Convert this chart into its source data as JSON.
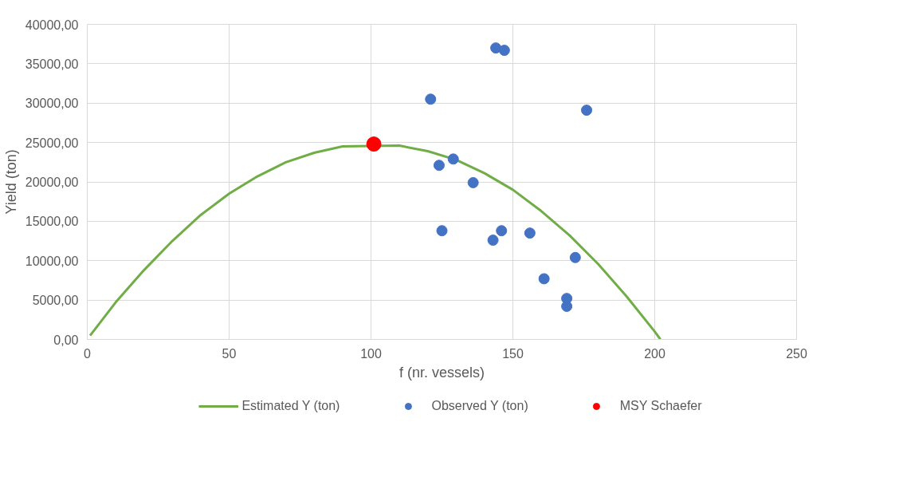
{
  "chart_data": {
    "type": "scatter",
    "xlabel": "f (nr. vessels)",
    "ylabel": "Yield (ton)",
    "xlim": [
      0,
      250
    ],
    "xticks": [
      0,
      50,
      100,
      150,
      200,
      250
    ],
    "ylim": [
      0,
      40000
    ],
    "yticks": [
      {
        "value": 0,
        "label": "0,00"
      },
      {
        "value": 5000,
        "label": "5000,00"
      },
      {
        "value": 10000,
        "label": "10000,00"
      },
      {
        "value": 15000,
        "label": "15000,00"
      },
      {
        "value": 20000,
        "label": "20000,00"
      },
      {
        "value": 25000,
        "label": "25000,00"
      },
      {
        "value": 30000,
        "label": "30000,00"
      },
      {
        "value": 35000,
        "label": "35000,00"
      },
      {
        "value": 40000,
        "label": "40000,00"
      }
    ],
    "grid": true,
    "legend": "bottom",
    "series": [
      {
        "name": "Estimated Y (ton)",
        "type": "line",
        "color": "#70ad47",
        "marker": "none",
        "line_style": "solid",
        "x": [
          1,
          10,
          20,
          30,
          40,
          50,
          60,
          70,
          80,
          90,
          110,
          120,
          130,
          140,
          150,
          160,
          170,
          180,
          190,
          200,
          202
        ],
        "values": [
          500,
          4700,
          8800,
          12500,
          15800,
          18500,
          20700,
          22500,
          23700,
          24500,
          24600,
          23900,
          22800,
          21100,
          19000,
          16300,
          13200,
          9600,
          5500,
          1000,
          0
        ]
      },
      {
        "name": "Observed Y (ton)",
        "type": "scatter",
        "color": "#4472c4",
        "marker": "circle",
        "x": [
          144,
          147,
          121,
          176,
          124,
          129,
          136,
          125,
          146,
          143,
          156,
          172,
          161,
          169,
          169
        ],
        "values": [
          37000,
          36700,
          30500,
          29100,
          22100,
          22900,
          19900,
          13800,
          13800,
          12600,
          13500,
          10400,
          7700,
          5200,
          4200
        ]
      },
      {
        "name": "MSY Schaefer",
        "type": "scatter",
        "color": "#ff0000",
        "marker": "circle",
        "x": [
          101
        ],
        "values": [
          24800
        ]
      }
    ]
  }
}
